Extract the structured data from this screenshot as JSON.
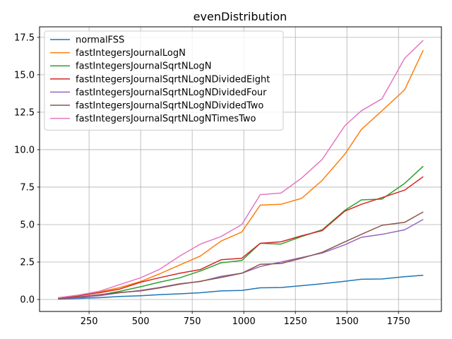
{
  "chart_data": {
    "type": "line",
    "title": "evenDistribution",
    "xlabel": "",
    "ylabel": "",
    "xlim": [
      10,
      1958
    ],
    "ylim": [
      -0.8,
      18.2
    ],
    "xticks": [
      250,
      500,
      750,
      1000,
      1250,
      1500,
      1750
    ],
    "xtick_labels": [
      "250",
      "500",
      "750",
      "1000",
      "1250",
      "1500",
      "1750"
    ],
    "yticks": [
      0,
      2.5,
      5,
      7.5,
      10,
      12.5,
      15,
      17.5
    ],
    "ytick_labels": [
      "0.0",
      "2.5",
      "5.0",
      "7.5",
      "10.0",
      "12.5",
      "15.0",
      "17.5"
    ],
    "grid": true,
    "legend_position": "upper-left",
    "x": [
      100,
      200,
      300,
      400,
      500,
      590,
      690,
      790,
      890,
      990,
      1080,
      1180,
      1280,
      1380,
      1490,
      1570,
      1670,
      1780,
      1870
    ],
    "series": [
      {
        "name": "normalFSS",
        "color": "#1f77b4",
        "values": [
          0.02,
          0.07,
          0.12,
          0.2,
          0.25,
          0.32,
          0.38,
          0.45,
          0.57,
          0.6,
          0.78,
          0.8,
          0.92,
          1.05,
          1.22,
          1.35,
          1.37,
          1.52,
          1.62
        ]
      },
      {
        "name": "fastIntegersJournalLogN",
        "color": "#ff7f0e",
        "values": [
          0.1,
          0.25,
          0.5,
          0.8,
          1.2,
          1.7,
          2.3,
          2.9,
          3.9,
          4.5,
          6.3,
          6.35,
          6.75,
          7.95,
          9.7,
          11.35,
          12.6,
          14.0,
          16.65
        ]
      },
      {
        "name": "fastIntegersJournalSqrtNLogN",
        "color": "#2ca02c",
        "values": [
          0.05,
          0.15,
          0.3,
          0.55,
          0.85,
          1.15,
          1.45,
          1.9,
          2.45,
          2.6,
          3.75,
          3.7,
          4.2,
          4.65,
          5.95,
          6.65,
          6.7,
          7.75,
          8.9
        ]
      },
      {
        "name": "fastIntegersJournalSqrtNLogNDividedEight",
        "color": "#d62728",
        "values": [
          0.1,
          0.25,
          0.45,
          0.7,
          1.15,
          1.45,
          1.75,
          2.0,
          2.65,
          2.75,
          3.75,
          3.85,
          4.25,
          4.6,
          5.9,
          6.35,
          6.8,
          7.3,
          8.2
        ]
      },
      {
        "name": "fastIntegersJournalSqrtNLogNDividedFour",
        "color": "#9467bd",
        "values": [
          0.03,
          0.12,
          0.25,
          0.45,
          0.6,
          0.8,
          1.05,
          1.2,
          1.55,
          1.75,
          2.2,
          2.5,
          2.8,
          3.1,
          3.65,
          4.15,
          4.35,
          4.65,
          5.35
        ]
      },
      {
        "name": "fastIntegersJournalSqrtNLogNDividedTwo",
        "color": "#8c564b",
        "values": [
          0.05,
          0.17,
          0.32,
          0.47,
          0.57,
          0.77,
          1.02,
          1.22,
          1.47,
          1.75,
          2.35,
          2.4,
          2.75,
          3.15,
          3.85,
          4.35,
          4.95,
          5.15,
          5.85
        ]
      },
      {
        "name": "fastIntegersJournalSqrtNLogNTimesTwo",
        "color": "#e377c2",
        "values": [
          0.12,
          0.3,
          0.55,
          1.0,
          1.45,
          2.0,
          2.9,
          3.7,
          4.2,
          5.0,
          7.0,
          7.1,
          8.1,
          9.35,
          11.6,
          12.6,
          13.4,
          16.1,
          17.3
        ]
      }
    ]
  }
}
